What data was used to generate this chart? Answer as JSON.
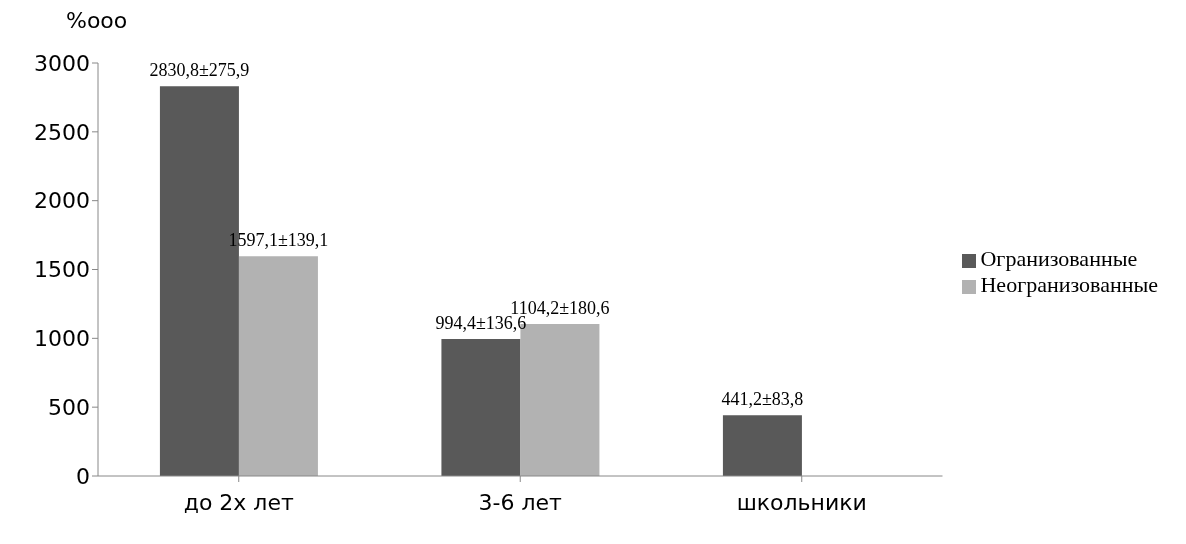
{
  "chart_data": {
    "type": "bar",
    "ylabel": "%ooo",
    "categories": [
      "до 2х лет",
      "3-6 лет",
      "школьники"
    ],
    "series": [
      {
        "name": "Огранизованные",
        "color": "#595959",
        "values": [
          2830.8,
          994.4,
          441.2
        ],
        "value_labels": [
          "2830,8±275,9",
          "994,4±136,6",
          "441,2±83,8"
        ]
      },
      {
        "name": "Неогранизованные",
        "color": "#b2b2b2",
        "values": [
          1597.1,
          1104.2,
          null
        ],
        "value_labels": [
          "1597,1±139,1",
          "1104,2±180,6",
          null
        ]
      }
    ],
    "ylim": [
      0,
      3000
    ],
    "yticks": [
      0,
      500,
      1000,
      1500,
      2000,
      2500,
      3000
    ],
    "grid": false,
    "legend": "right"
  }
}
